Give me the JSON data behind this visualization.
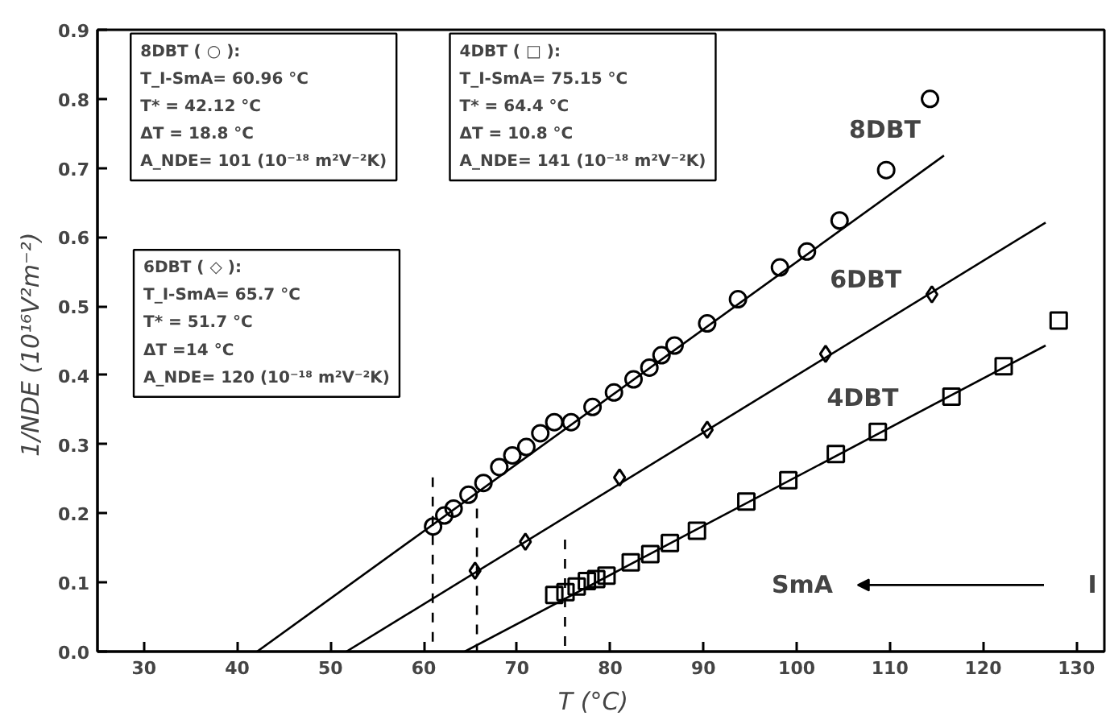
{
  "chart_data": {
    "type": "scatter",
    "xlabel": "T   (°C)",
    "ylabel": "1/NDE  (10¹⁶V²m⁻²)",
    "xlim": [
      25,
      133
    ],
    "ylim": [
      0,
      0.9
    ],
    "xticks": [
      30,
      40,
      50,
      60,
      70,
      80,
      90,
      100,
      110,
      120,
      130
    ],
    "yticks": [
      {
        "value": 0,
        "label": "0.0"
      },
      {
        "value": 0.1,
        "label": "0.1"
      },
      {
        "value": 0.2,
        "label": "0.2"
      },
      {
        "value": 0.3,
        "label": "0.3"
      },
      {
        "value": 0.4,
        "label": "0.4"
      },
      {
        "value": 0.5,
        "label": "0.5"
      },
      {
        "value": 0.6,
        "label": "0.6"
      },
      {
        "value": 0.7,
        "label": "0.7"
      },
      {
        "value": 0.8,
        "label": "0.8"
      },
      {
        "value": 0.9,
        "label": "0.9"
      }
    ],
    "grid": false,
    "legend": false,
    "series": [
      {
        "name": "8DBT",
        "marker": "circle",
        "color": "#000000",
        "x": [
          61.0,
          62.2,
          63.2,
          64.8,
          66.4,
          68.1,
          69.5,
          71.0,
          72.5,
          74.0,
          75.8,
          78.1,
          80.4,
          82.5,
          84.2,
          85.5,
          86.9,
          90.4,
          93.7,
          98.2,
          101.1,
          104.6,
          109.6,
          114.3
        ],
        "values": [
          0.181,
          0.197,
          0.207,
          0.227,
          0.244,
          0.267,
          0.284,
          0.296,
          0.316,
          0.332,
          0.332,
          0.354,
          0.375,
          0.394,
          0.411,
          0.429,
          0.443,
          0.475,
          0.51,
          0.556,
          0.579,
          0.624,
          0.697,
          0.8
        ]
      },
      {
        "type": "line",
        "color": "#000000",
        "x": [
          42.12,
          115.8
        ],
        "values": [
          0,
          0.718
        ]
      },
      {
        "name": "6DBT",
        "marker": "diamond",
        "color": "#000000",
        "x": [
          65.5,
          70.9,
          81.0,
          90.4,
          103.1,
          114.5
        ],
        "values": [
          0.117,
          0.159,
          0.252,
          0.321,
          0.431,
          0.517
        ]
      },
      {
        "type": "line",
        "color": "#000000",
        "x": [
          51.7,
          126.7
        ],
        "values": [
          0,
          0.621
        ]
      },
      {
        "name": "4DBT",
        "marker": "square",
        "color": "#000000",
        "x": [
          74.0,
          75.2,
          76.4,
          77.5,
          78.5,
          79.6,
          82.2,
          84.3,
          86.4,
          89.3,
          94.6,
          99.1,
          104.2,
          108.7,
          116.6,
          122.2,
          128.1
        ],
        "values": [
          0.082,
          0.086,
          0.094,
          0.102,
          0.105,
          0.11,
          0.129,
          0.141,
          0.157,
          0.175,
          0.217,
          0.248,
          0.286,
          0.318,
          0.369,
          0.413,
          0.479
        ]
      },
      {
        "type": "line",
        "color": "#000000",
        "x": [
          64.4,
          126.7
        ],
        "values": [
          0,
          0.443
        ]
      }
    ],
    "ref_lines": [
      {
        "axis": "x",
        "value": 60.96,
        "line_style": "dashed",
        "color": "#000000"
      },
      {
        "axis": "x",
        "value": 65.7,
        "line_style": "dashed",
        "color": "#000000"
      },
      {
        "axis": "x",
        "value": 75.15,
        "line_style": "dashed",
        "color": "#000000"
      }
    ],
    "annotations": [
      "8DBT ( ○ ):\nT_I-SmA= 60.96 °C\nT* = 42.12 °C\nΔT = 18.8 °C\nA_NDE= 101 (10⁻¹⁸ m²V⁻²K)",
      "4DBT ( □ ):\nT_I-SmA= 75.15 °C\nT* = 64.4 °C\nΔT = 10.8 °C\nA_NDE= 141 (10⁻¹⁸ m²V⁻²K)",
      "6DBT ( ◇ ):\nT_I-SmA= 65.7 °C\nT* = 51.7 °C\nΔT =14 °C\nA_NDE= 120 (10⁻¹⁸ m²V⁻²K)",
      "SmA",
      "I"
    ]
  }
}
